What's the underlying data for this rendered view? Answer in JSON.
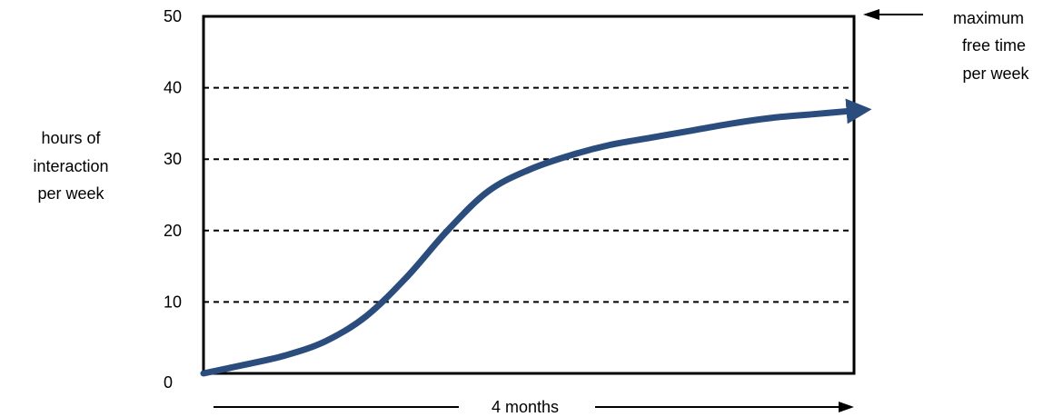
{
  "chart_data": {
    "type": "line",
    "title": "",
    "xlabel": "4 months",
    "ylabel_lines": [
      "hours of",
      "interaction",
      "per week"
    ],
    "ylim": [
      0,
      50
    ],
    "xlim": [
      0,
      16
    ],
    "y_ticks": [
      "0",
      "10",
      "20",
      "30",
      "40",
      "50"
    ],
    "grid": "dashed horizontal",
    "legend": "none",
    "series": [
      {
        "x": [
          0,
          1,
          2,
          3,
          4,
          5,
          6,
          7,
          8,
          9,
          10,
          11,
          12,
          13,
          14,
          15,
          16
        ],
        "y": [
          0,
          1.2,
          2.5,
          4.5,
          8,
          13.5,
          20,
          25.5,
          28.5,
          30.5,
          32,
          33,
          34,
          35,
          35.8,
          36.3,
          36.8
        ],
        "color": "#2a4d7e"
      }
    ],
    "annotations": [
      {
        "lines": [
          "maximum",
          "free time",
          "per week"
        ],
        "y": 50
      }
    ]
  }
}
